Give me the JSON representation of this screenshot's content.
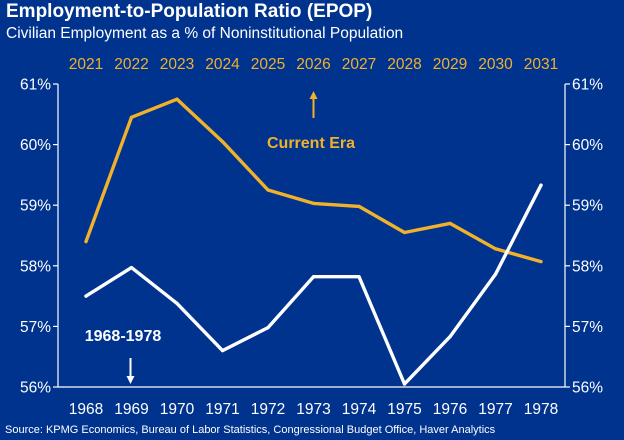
{
  "title": "Employment-to-Population Ratio (EPOP)",
  "subtitle": "Civilian Employment as a % of Noninstitutional Population",
  "source": "Source: KPMG Economics, Bureau of Labor Statistics, Congressional Budget Office, Haver Analytics",
  "colors": {
    "background": "#00338D",
    "current": "#F1B12B",
    "historical": "#FFFFFF"
  },
  "chart_data": {
    "type": "line",
    "title": "Employment-to-Population Ratio (EPOP)",
    "subtitle": "Civilian Employment as a % of Noninstitutional Population",
    "ylim": [
      56,
      61
    ],
    "y_ticks": [
      "56%",
      "57%",
      "58%",
      "59%",
      "60%",
      "61%"
    ],
    "y_ticks_right": [
      "56%",
      "57%",
      "58%",
      "59%",
      "60%",
      "61%"
    ],
    "x_bottom": [
      "1968",
      "1969",
      "1970",
      "1971",
      "1972",
      "1973",
      "1974",
      "1975",
      "1976",
      "1977",
      "1978"
    ],
    "x_top": [
      "2021",
      "2022",
      "2023",
      "2024",
      "2025",
      "2026",
      "2027",
      "2028",
      "2029",
      "2030",
      "2031"
    ],
    "grid": false,
    "series": [
      {
        "name": "Current Era",
        "axis": "top",
        "color": "#F1B12B",
        "values": [
          58.4,
          60.45,
          60.75,
          60.05,
          59.25,
          59.03,
          58.98,
          58.55,
          58.7,
          58.28,
          58.07
        ]
      },
      {
        "name": "1968-1978",
        "axis": "bottom",
        "color": "#FFFFFF",
        "values": [
          57.5,
          57.97,
          57.38,
          56.6,
          56.98,
          57.82,
          57.82,
          56.05,
          56.83,
          57.86,
          59.33
        ]
      }
    ],
    "annotations": [
      {
        "text": "Current Era",
        "points_to": "top-axis",
        "color": "#F1B12B"
      },
      {
        "text": "1968-1978",
        "points_to": "bottom-axis",
        "color": "#FFFFFF"
      }
    ]
  }
}
